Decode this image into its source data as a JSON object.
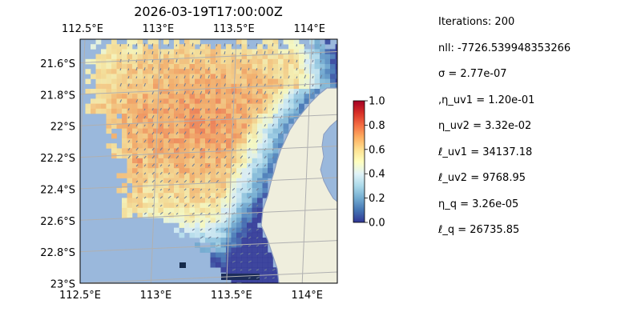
{
  "chart_data": {
    "type": "heatmap",
    "title": "2026-03-19T17:00:00Z",
    "lon_range": [
      112.5,
      114.2
    ],
    "lat_range": [
      -23.0,
      -21.45
    ],
    "x_ticks": [
      {
        "value": 112.5,
        "label": "112.5°E"
      },
      {
        "value": 113.0,
        "label": "113°E"
      },
      {
        "value": 113.5,
        "label": "113.5°E"
      },
      {
        "value": 114.0,
        "label": "114°E"
      }
    ],
    "y_ticks": [
      {
        "value": -21.6,
        "label": "21.6°S"
      },
      {
        "value": -21.8,
        "label": "21.8°S"
      },
      {
        "value": -22.0,
        "label": "22°S"
      },
      {
        "value": -22.2,
        "label": "22.2°S"
      },
      {
        "value": -22.4,
        "label": "22.4°S"
      },
      {
        "value": -22.6,
        "label": "22.6°S"
      },
      {
        "value": -22.8,
        "label": "22.8°S"
      },
      {
        "value": -23.0,
        "label": "23°S"
      }
    ],
    "grid": true,
    "colorbar": {
      "range": [
        0.0,
        1.0
      ],
      "ticks": [
        {
          "value": 0.0,
          "label": "0.0"
        },
        {
          "value": 0.2,
          "label": "0.2"
        },
        {
          "value": 0.4,
          "label": "0.4"
        },
        {
          "value": 0.6,
          "label": "0.6"
        },
        {
          "value": 0.8,
          "label": "0.8"
        },
        {
          "value": 1.0,
          "label": "1.0"
        }
      ],
      "colormap": "RdYlBu_r"
    },
    "colors": {
      "ocean": "#9ab8dc",
      "land": "#efeedd",
      "coast": "#8a9cc0",
      "grid": "#b0b0b0",
      "arrows": "#6f7f9a"
    }
  },
  "stats": {
    "iterations": "Iterations: 200",
    "nll": "nll: -7726.539948353266",
    "sigma": "σ = 2.77e-07",
    "eta_uv1": ",η_uv1 = 1.20e-01",
    "eta_uv2": "η_uv2 = 3.32e-02",
    "ell_uv1": "ℓ_uv1 = 34137.18",
    "ell_uv2": "ℓ_uv2 = 9768.95",
    "eta_q": "η_q = 3.26e-05",
    "ell_q": "ℓ_q = 26735.85"
  }
}
